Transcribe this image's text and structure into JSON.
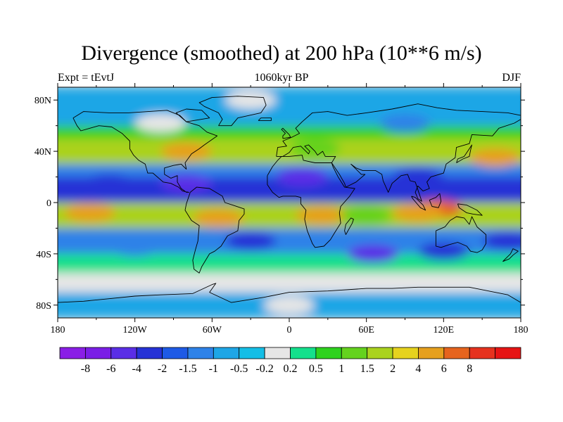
{
  "chart_data": {
    "type": "heatmap",
    "title": "Divergence (smoothed) at 200 hPa (10**6 m/s)",
    "left_label": "Expt = tEvtJ",
    "center_label": "1060kyr BP",
    "right_label": "DJF",
    "x_ticks": [
      "180",
      "120W",
      "60W",
      "0",
      "60E",
      "120E",
      "180"
    ],
    "y_ticks": [
      "80N",
      "40N",
      "0",
      "40S",
      "80S"
    ],
    "x_range": [
      -180,
      180
    ],
    "y_range": [
      -90,
      90
    ],
    "colorbar": {
      "labels": [
        "-8",
        "-6",
        "-4",
        "-2",
        "-1.5",
        "-1",
        "-0.5",
        "-0.2",
        "0.2",
        "0.5",
        "1",
        "1.5",
        "2",
        "4",
        "6",
        "8"
      ],
      "colors": [
        "#8a1ee6",
        "#7a1ee6",
        "#5a2ee6",
        "#2632d6",
        "#1e5ae6",
        "#2e82e8",
        "#1ea6e6",
        "#14bee6",
        "#e6e6e6",
        "#14e08c",
        "#2ed21e",
        "#64d21e",
        "#aad21e",
        "#e6d21e",
        "#e6a01e",
        "#e6641e",
        "#e6321e",
        "#e61414"
      ]
    },
    "latitude_bands": [
      {
        "lat": [
          60,
          90
        ],
        "level": "-0.5",
        "color": "#1ea6e6"
      },
      {
        "lat": [
          50,
          60
        ],
        "level": "1",
        "color": "#2ed21e"
      },
      {
        "lat": [
          30,
          50
        ],
        "level": "2",
        "color": "#aad21e"
      },
      {
        "lat": [
          20,
          30
        ],
        "level": "-1",
        "color": "#2e82e8"
      },
      {
        "lat": [
          0,
          20
        ],
        "level": "-2",
        "color": "#2632d6"
      },
      {
        "lat": [
          -20,
          0
        ],
        "level": "2",
        "color": "#aad21e"
      },
      {
        "lat": [
          -40,
          -20
        ],
        "level": "-1",
        "color": "#2e82e8"
      },
      {
        "lat": [
          -55,
          -40
        ],
        "level": "0.5",
        "color": "#14e08c"
      },
      {
        "lat": [
          -70,
          -55
        ],
        "level": "0.2",
        "color": "#e6e6e6"
      },
      {
        "lat": [
          -90,
          -70
        ],
        "level": "-0.5",
        "color": "#1ea6e6"
      }
    ],
    "features": [
      {
        "lon": 115,
        "lat": -5,
        "level": "6",
        "color": "#e6641e"
      },
      {
        "lon": 100,
        "lat": -8,
        "level": "4",
        "color": "#e6a01e"
      },
      {
        "lon": 25,
        "lat": -10,
        "level": "4",
        "color": "#e6a01e"
      },
      {
        "lon": -55,
        "lat": -12,
        "level": "4",
        "color": "#e6a01e"
      },
      {
        "lon": -155,
        "lat": -8,
        "level": "4",
        "color": "#e6a01e"
      },
      {
        "lon": -110,
        "lat": -10,
        "level": "2",
        "color": "#aad21e"
      },
      {
        "lon": 60,
        "lat": -10,
        "level": "1.5",
        "color": "#64d21e"
      },
      {
        "lon": 160,
        "lat": 35,
        "level": "4",
        "color": "#e6a01e"
      },
      {
        "lon": -80,
        "lat": 40,
        "level": "4",
        "color": "#e6a01e"
      },
      {
        "lon": 20,
        "lat": 42,
        "level": "1.5",
        "color": "#64d21e"
      },
      {
        "lon": -150,
        "lat": 40,
        "level": "2",
        "color": "#aad21e"
      },
      {
        "lon": -80,
        "lat": 15,
        "level": "-4",
        "color": "#5a2ee6"
      },
      {
        "lon": 10,
        "lat": 20,
        "level": "-4",
        "color": "#5a2ee6"
      },
      {
        "lon": -140,
        "lat": 15,
        "level": "-2",
        "color": "#2632d6"
      },
      {
        "lon": 100,
        "lat": 20,
        "level": "-2",
        "color": "#2632d6"
      },
      {
        "lon": 65,
        "lat": -40,
        "level": "-4",
        "color": "#5a2ee6"
      },
      {
        "lon": -30,
        "lat": -30,
        "level": "-2",
        "color": "#2632d6"
      },
      {
        "lon": 120,
        "lat": -38,
        "level": "-2",
        "color": "#2632d6"
      },
      {
        "lon": 170,
        "lat": -30,
        "level": "-2",
        "color": "#2632d6"
      },
      {
        "lon": -120,
        "lat": -35,
        "level": "-1",
        "color": "#2e82e8"
      },
      {
        "lon": -100,
        "lat": 62,
        "level": "0.2",
        "color": "#e6e6e6"
      },
      {
        "lon": 90,
        "lat": 62,
        "level": "-1",
        "color": "#2e82e8"
      },
      {
        "lon": 0,
        "lat": -80,
        "level": "0.2",
        "color": "#e6e6e6"
      },
      {
        "lon": -30,
        "lat": 80,
        "level": "0.2",
        "color": "#e6e6e6"
      }
    ]
  }
}
